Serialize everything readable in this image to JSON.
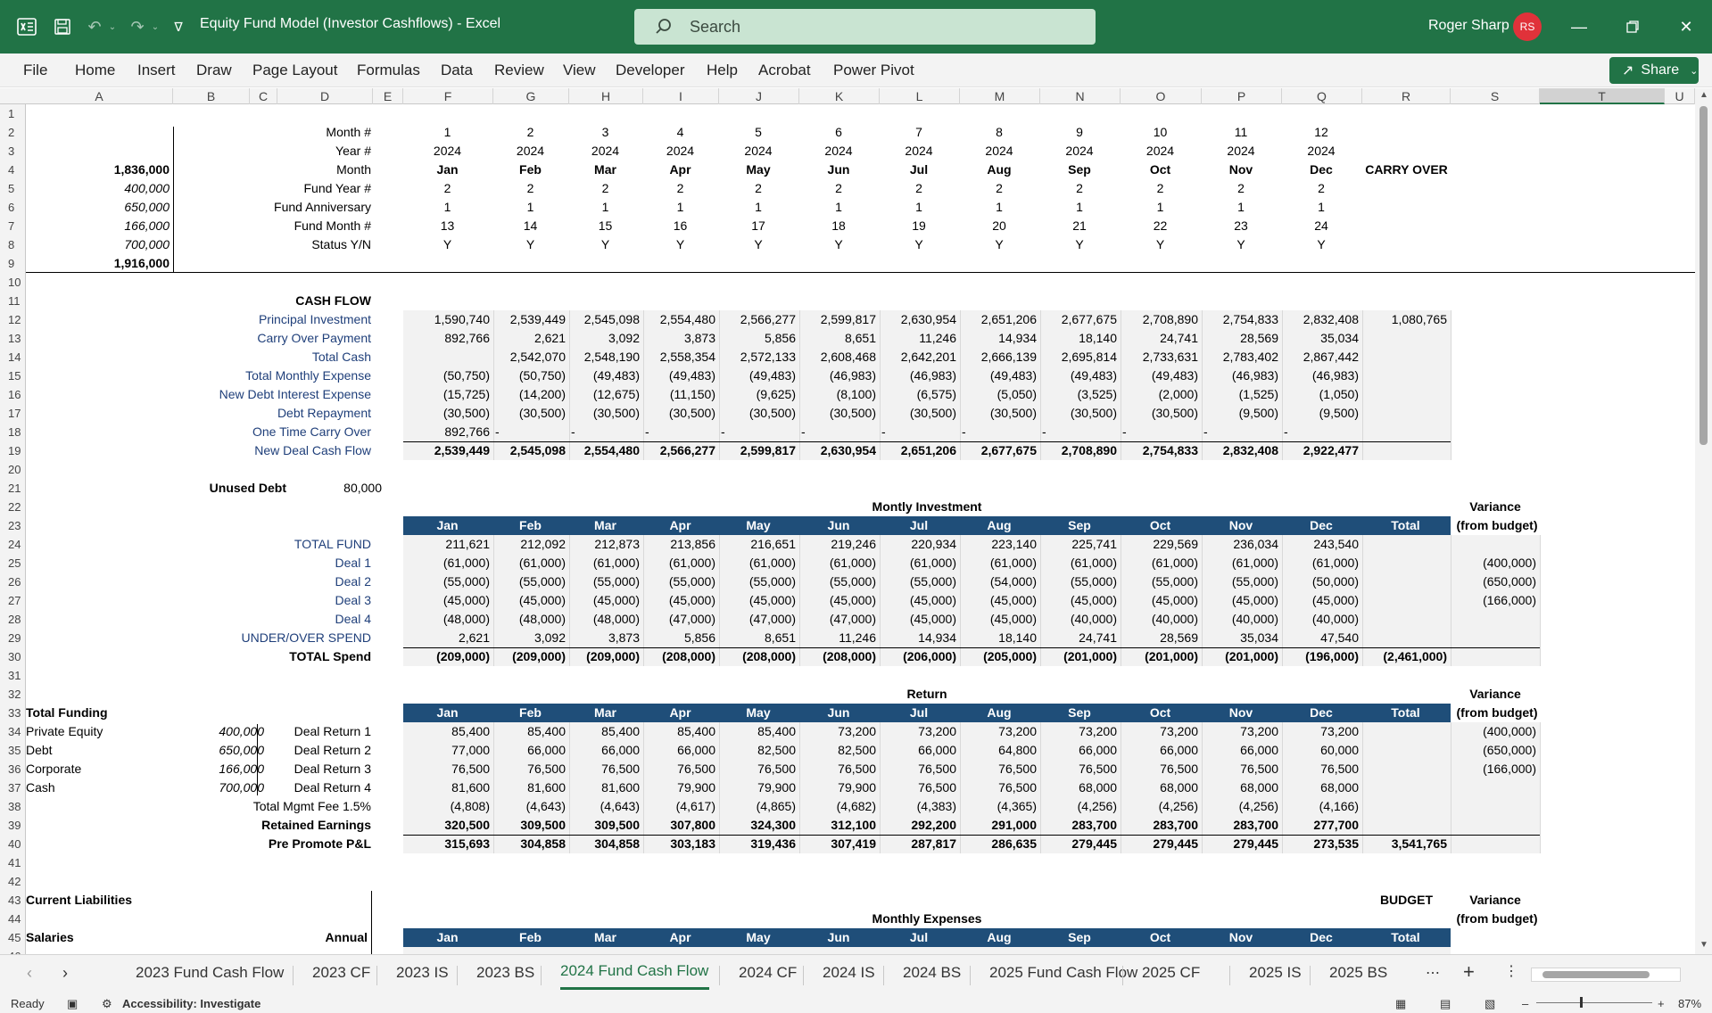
{
  "app": {
    "doc_title": "Equity Fund Model (Investor Cashflows)  -  Excel",
    "search_placeholder": "Search",
    "user_name": "Roger Sharp",
    "user_initials": "RS",
    "share_label": "Share"
  },
  "menu": [
    "File",
    "Home",
    "Insert",
    "Draw",
    "Page Layout",
    "Formulas",
    "Data",
    "Review",
    "View",
    "Developer",
    "Help",
    "Acrobat",
    "Power Pivot"
  ],
  "columns": [
    "A",
    "B",
    "C",
    "D",
    "E",
    "F",
    "G",
    "H",
    "I",
    "J",
    "K",
    "L",
    "M",
    "N",
    "O",
    "P",
    "Q",
    "R",
    "S",
    "T",
    "U"
  ],
  "rows": [
    "1",
    "2",
    "3",
    "4",
    "5",
    "6",
    "7",
    "8",
    "9",
    "10",
    "11",
    "12",
    "13",
    "14",
    "15",
    "16",
    "17",
    "18",
    "19",
    "20",
    "21",
    "22",
    "23",
    "24",
    "25",
    "26",
    "27",
    "28",
    "29",
    "30",
    "31",
    "32",
    "33",
    "34",
    "35",
    "36",
    "37",
    "38",
    "39",
    "40",
    "41",
    "42",
    "43",
    "44",
    "45",
    "46"
  ],
  "header_block": {
    "labels": [
      "Month #",
      "Year #",
      "Month",
      "Fund Year #",
      "Fund Anniversary",
      "Fund Month #",
      "Status Y/N"
    ],
    "a_values": [
      "",
      "",
      "1,836,000",
      "400,000",
      "650,000",
      "166,000",
      "700,000",
      "1,916,000"
    ],
    "month_num": [
      "1",
      "2",
      "3",
      "4",
      "5",
      "6",
      "7",
      "8",
      "9",
      "10",
      "11",
      "12"
    ],
    "year_num": [
      "2024",
      "2024",
      "2024",
      "2024",
      "2024",
      "2024",
      "2024",
      "2024",
      "2024",
      "2024",
      "2024",
      "2024"
    ],
    "month": [
      "Jan",
      "Feb",
      "Mar",
      "Apr",
      "May",
      "Jun",
      "Jul",
      "Aug",
      "Sep",
      "Oct",
      "Nov",
      "Dec"
    ],
    "fund_year": [
      "2",
      "2",
      "2",
      "2",
      "2",
      "2",
      "2",
      "2",
      "2",
      "2",
      "2",
      "2"
    ],
    "fund_anniv": [
      "1",
      "1",
      "1",
      "1",
      "1",
      "1",
      "1",
      "1",
      "1",
      "1",
      "1",
      "1"
    ],
    "fund_month": [
      "13",
      "14",
      "15",
      "16",
      "17",
      "18",
      "19",
      "20",
      "21",
      "22",
      "23",
      "24"
    ],
    "status": [
      "Y",
      "Y",
      "Y",
      "Y",
      "Y",
      "Y",
      "Y",
      "Y",
      "Y",
      "Y",
      "Y",
      "Y"
    ],
    "carry_over": "CARRY OVER"
  },
  "cash_flow": {
    "title": "CASH FLOW",
    "rows": [
      {
        "label": "Principal Investment",
        "vals": [
          "1,590,740",
          "2,539,449",
          "2,545,098",
          "2,554,480",
          "2,566,277",
          "2,599,817",
          "2,630,954",
          "2,651,206",
          "2,677,675",
          "2,708,890",
          "2,754,833",
          "2,832,408",
          "1,080,765"
        ],
        "bold": false
      },
      {
        "label": "Carry Over Payment",
        "vals": [
          "892,766",
          "2,621",
          "3,092",
          "3,873",
          "5,856",
          "8,651",
          "11,246",
          "14,934",
          "18,140",
          "24,741",
          "28,569",
          "35,034",
          ""
        ],
        "bold": false
      },
      {
        "label": "Total Cash",
        "vals": [
          "",
          "2,542,070",
          "2,548,190",
          "2,558,354",
          "2,572,133",
          "2,608,468",
          "2,642,201",
          "2,666,139",
          "2,695,814",
          "2,733,631",
          "2,783,402",
          "2,867,442",
          ""
        ],
        "bold": false
      },
      {
        "label": "Total Monthly Expense",
        "vals": [
          "(50,750)",
          "(50,750)",
          "(49,483)",
          "(49,483)",
          "(49,483)",
          "(46,983)",
          "(46,983)",
          "(49,483)",
          "(49,483)",
          "(49,483)",
          "(46,983)",
          "(46,983)",
          ""
        ],
        "bold": false
      },
      {
        "label": "New Debt Interest Expense",
        "vals": [
          "(15,725)",
          "(14,200)",
          "(12,675)",
          "(11,150)",
          "(9,625)",
          "(8,100)",
          "(6,575)",
          "(5,050)",
          "(3,525)",
          "(2,000)",
          "(1,525)",
          "(1,050)",
          ""
        ],
        "bold": false
      },
      {
        "label": "Debt Repayment",
        "vals": [
          "(30,500)",
          "(30,500)",
          "(30,500)",
          "(30,500)",
          "(30,500)",
          "(30,500)",
          "(30,500)",
          "(30,500)",
          "(30,500)",
          "(30,500)",
          "(9,500)",
          "(9,500)",
          ""
        ],
        "bold": false
      },
      {
        "label": "One Time Carry Over",
        "vals": [
          "892,766",
          "-",
          "-",
          "-",
          "-",
          "-",
          "-",
          "-",
          "-",
          "-",
          "-",
          "-",
          ""
        ],
        "bold": false
      },
      {
        "label": "New Deal Cash Flow",
        "vals": [
          "2,539,449",
          "2,545,098",
          "2,554,480",
          "2,566,277",
          "2,599,817",
          "2,630,954",
          "2,651,206",
          "2,677,675",
          "2,708,890",
          "2,754,833",
          "2,832,408",
          "2,922,477",
          ""
        ],
        "bold": true
      }
    ],
    "unused_debt_label": "Unused Debt",
    "unused_debt_value": "80,000"
  },
  "investment": {
    "title": "Montly Investment",
    "variance_label": "Variance",
    "variance_sub": "(from budget)",
    "headers": [
      "Jan",
      "Feb",
      "Mar",
      "Apr",
      "May",
      "Jun",
      "Jul",
      "Aug",
      "Sep",
      "Oct",
      "Nov",
      "Dec",
      "Total"
    ],
    "rows": [
      {
        "label": "TOTAL FUND",
        "vals": [
          "211,621",
          "212,092",
          "212,873",
          "213,856",
          "216,651",
          "219,246",
          "220,934",
          "223,140",
          "225,741",
          "229,569",
          "236,034",
          "243,540",
          ""
        ],
        "var": "",
        "bold": false
      },
      {
        "label": "Deal 1",
        "vals": [
          "(61,000)",
          "(61,000)",
          "(61,000)",
          "(61,000)",
          "(61,000)",
          "(61,000)",
          "(61,000)",
          "(61,000)",
          "(61,000)",
          "(61,000)",
          "(61,000)",
          "(61,000)",
          ""
        ],
        "var": "(400,000)",
        "bold": false
      },
      {
        "label": "Deal 2",
        "vals": [
          "(55,000)",
          "(55,000)",
          "(55,000)",
          "(55,000)",
          "(55,000)",
          "(55,000)",
          "(55,000)",
          "(54,000)",
          "(55,000)",
          "(55,000)",
          "(55,000)",
          "(50,000)",
          ""
        ],
        "var": "(650,000)",
        "bold": false
      },
      {
        "label": "Deal 3",
        "vals": [
          "(45,000)",
          "(45,000)",
          "(45,000)",
          "(45,000)",
          "(45,000)",
          "(45,000)",
          "(45,000)",
          "(45,000)",
          "(45,000)",
          "(45,000)",
          "(45,000)",
          "(45,000)",
          ""
        ],
        "var": "(166,000)",
        "bold": false
      },
      {
        "label": "Deal 4",
        "vals": [
          "(48,000)",
          "(48,000)",
          "(48,000)",
          "(47,000)",
          "(47,000)",
          "(47,000)",
          "(45,000)",
          "(45,000)",
          "(40,000)",
          "(40,000)",
          "(40,000)",
          "(40,000)",
          ""
        ],
        "var": "",
        "bold": false
      },
      {
        "label": "UNDER/OVER SPEND",
        "vals": [
          "2,621",
          "3,092",
          "3,873",
          "5,856",
          "8,651",
          "11,246",
          "14,934",
          "18,140",
          "24,741",
          "28,569",
          "35,034",
          "47,540",
          ""
        ],
        "var": "",
        "bold": false
      },
      {
        "label": "TOTAL Spend",
        "vals": [
          "(209,000)",
          "(209,000)",
          "(209,000)",
          "(208,000)",
          "(208,000)",
          "(208,000)",
          "(206,000)",
          "(205,000)",
          "(201,000)",
          "(201,000)",
          "(201,000)",
          "(196,000)",
          "(2,461,000)"
        ],
        "var": "",
        "bold": true
      }
    ]
  },
  "returns": {
    "title": "Return",
    "variance_label": "Variance",
    "variance_sub": "(from budget)",
    "funding_title": "Total Funding",
    "funding": [
      {
        "name": "Private Equity",
        "value": "400,000"
      },
      {
        "name": "Debt",
        "value": "650,000"
      },
      {
        "name": "Corporate",
        "value": "166,000"
      },
      {
        "name": "Cash",
        "value": "700,000"
      }
    ],
    "headers": [
      "Jan",
      "Feb",
      "Mar",
      "Apr",
      "May",
      "Jun",
      "Jul",
      "Aug",
      "Sep",
      "Oct",
      "Nov",
      "Dec",
      "Total"
    ],
    "rows": [
      {
        "label": "Deal Return 1",
        "vals": [
          "85,400",
          "85,400",
          "85,400",
          "85,400",
          "85,400",
          "73,200",
          "73,200",
          "73,200",
          "73,200",
          "73,200",
          "73,200",
          "73,200",
          ""
        ],
        "var": "(400,000)",
        "bold": false
      },
      {
        "label": "Deal Return 2",
        "vals": [
          "77,000",
          "66,000",
          "66,000",
          "66,000",
          "82,500",
          "82,500",
          "66,000",
          "64,800",
          "66,000",
          "66,000",
          "66,000",
          "60,000",
          ""
        ],
        "var": "(650,000)",
        "bold": false
      },
      {
        "label": "Deal Return 3",
        "vals": [
          "76,500",
          "76,500",
          "76,500",
          "76,500",
          "76,500",
          "76,500",
          "76,500",
          "76,500",
          "76,500",
          "76,500",
          "76,500",
          "76,500",
          ""
        ],
        "var": "(166,000)",
        "bold": false
      },
      {
        "label": "Deal Return 4",
        "vals": [
          "81,600",
          "81,600",
          "81,600",
          "79,900",
          "79,900",
          "79,900",
          "76,500",
          "76,500",
          "68,000",
          "68,000",
          "68,000",
          "68,000",
          ""
        ],
        "var": "",
        "bold": false
      },
      {
        "label": "Total Mgmt Fee 1.5%",
        "vals": [
          "(4,808)",
          "(4,643)",
          "(4,643)",
          "(4,617)",
          "(4,865)",
          "(4,682)",
          "(4,383)",
          "(4,365)",
          "(4,256)",
          "(4,256)",
          "(4,256)",
          "(4,166)",
          ""
        ],
        "var": "",
        "bold": false
      },
      {
        "label": "Retained Earnings",
        "vals": [
          "320,500",
          "309,500",
          "309,500",
          "307,800",
          "324,300",
          "312,100",
          "292,200",
          "291,000",
          "283,700",
          "283,700",
          "283,700",
          "277,700",
          ""
        ],
        "var": "",
        "bold": true
      },
      {
        "label": "Pre Promote P&L",
        "vals": [
          "315,693",
          "304,858",
          "304,858",
          "303,183",
          "319,436",
          "307,419",
          "287,817",
          "286,635",
          "279,445",
          "279,445",
          "279,445",
          "273,535",
          "3,541,765"
        ],
        "var": "",
        "bold": true
      }
    ]
  },
  "liabilities": {
    "title": "Current Liabilities",
    "budget": "BUDGET",
    "variance_label": "Variance",
    "variance_sub": "(from budget)",
    "expenses_title": "Monthly Expenses",
    "salaries": "Salaries",
    "annual": "Annual",
    "headers": [
      "Jan",
      "Feb",
      "Mar",
      "Apr",
      "May",
      "Jun",
      "Jul",
      "Aug",
      "Sep",
      "Oct",
      "Nov",
      "Dec",
      "Total"
    ]
  },
  "tabs": [
    "2023 Fund Cash Flow",
    "2023 CF",
    "2023 IS",
    "2023 BS",
    "2024 Fund Cash Flow",
    "2024 CF",
    "2024 IS",
    "2024 BS",
    "2025 Fund Cash Flow",
    "2025 CF",
    "2025 IS",
    "2025 BS"
  ],
  "active_tab": "2024 Fund Cash Flow",
  "status": {
    "ready": "Ready",
    "accessibility": "Accessibility: Investigate",
    "zoom": "87%"
  }
}
